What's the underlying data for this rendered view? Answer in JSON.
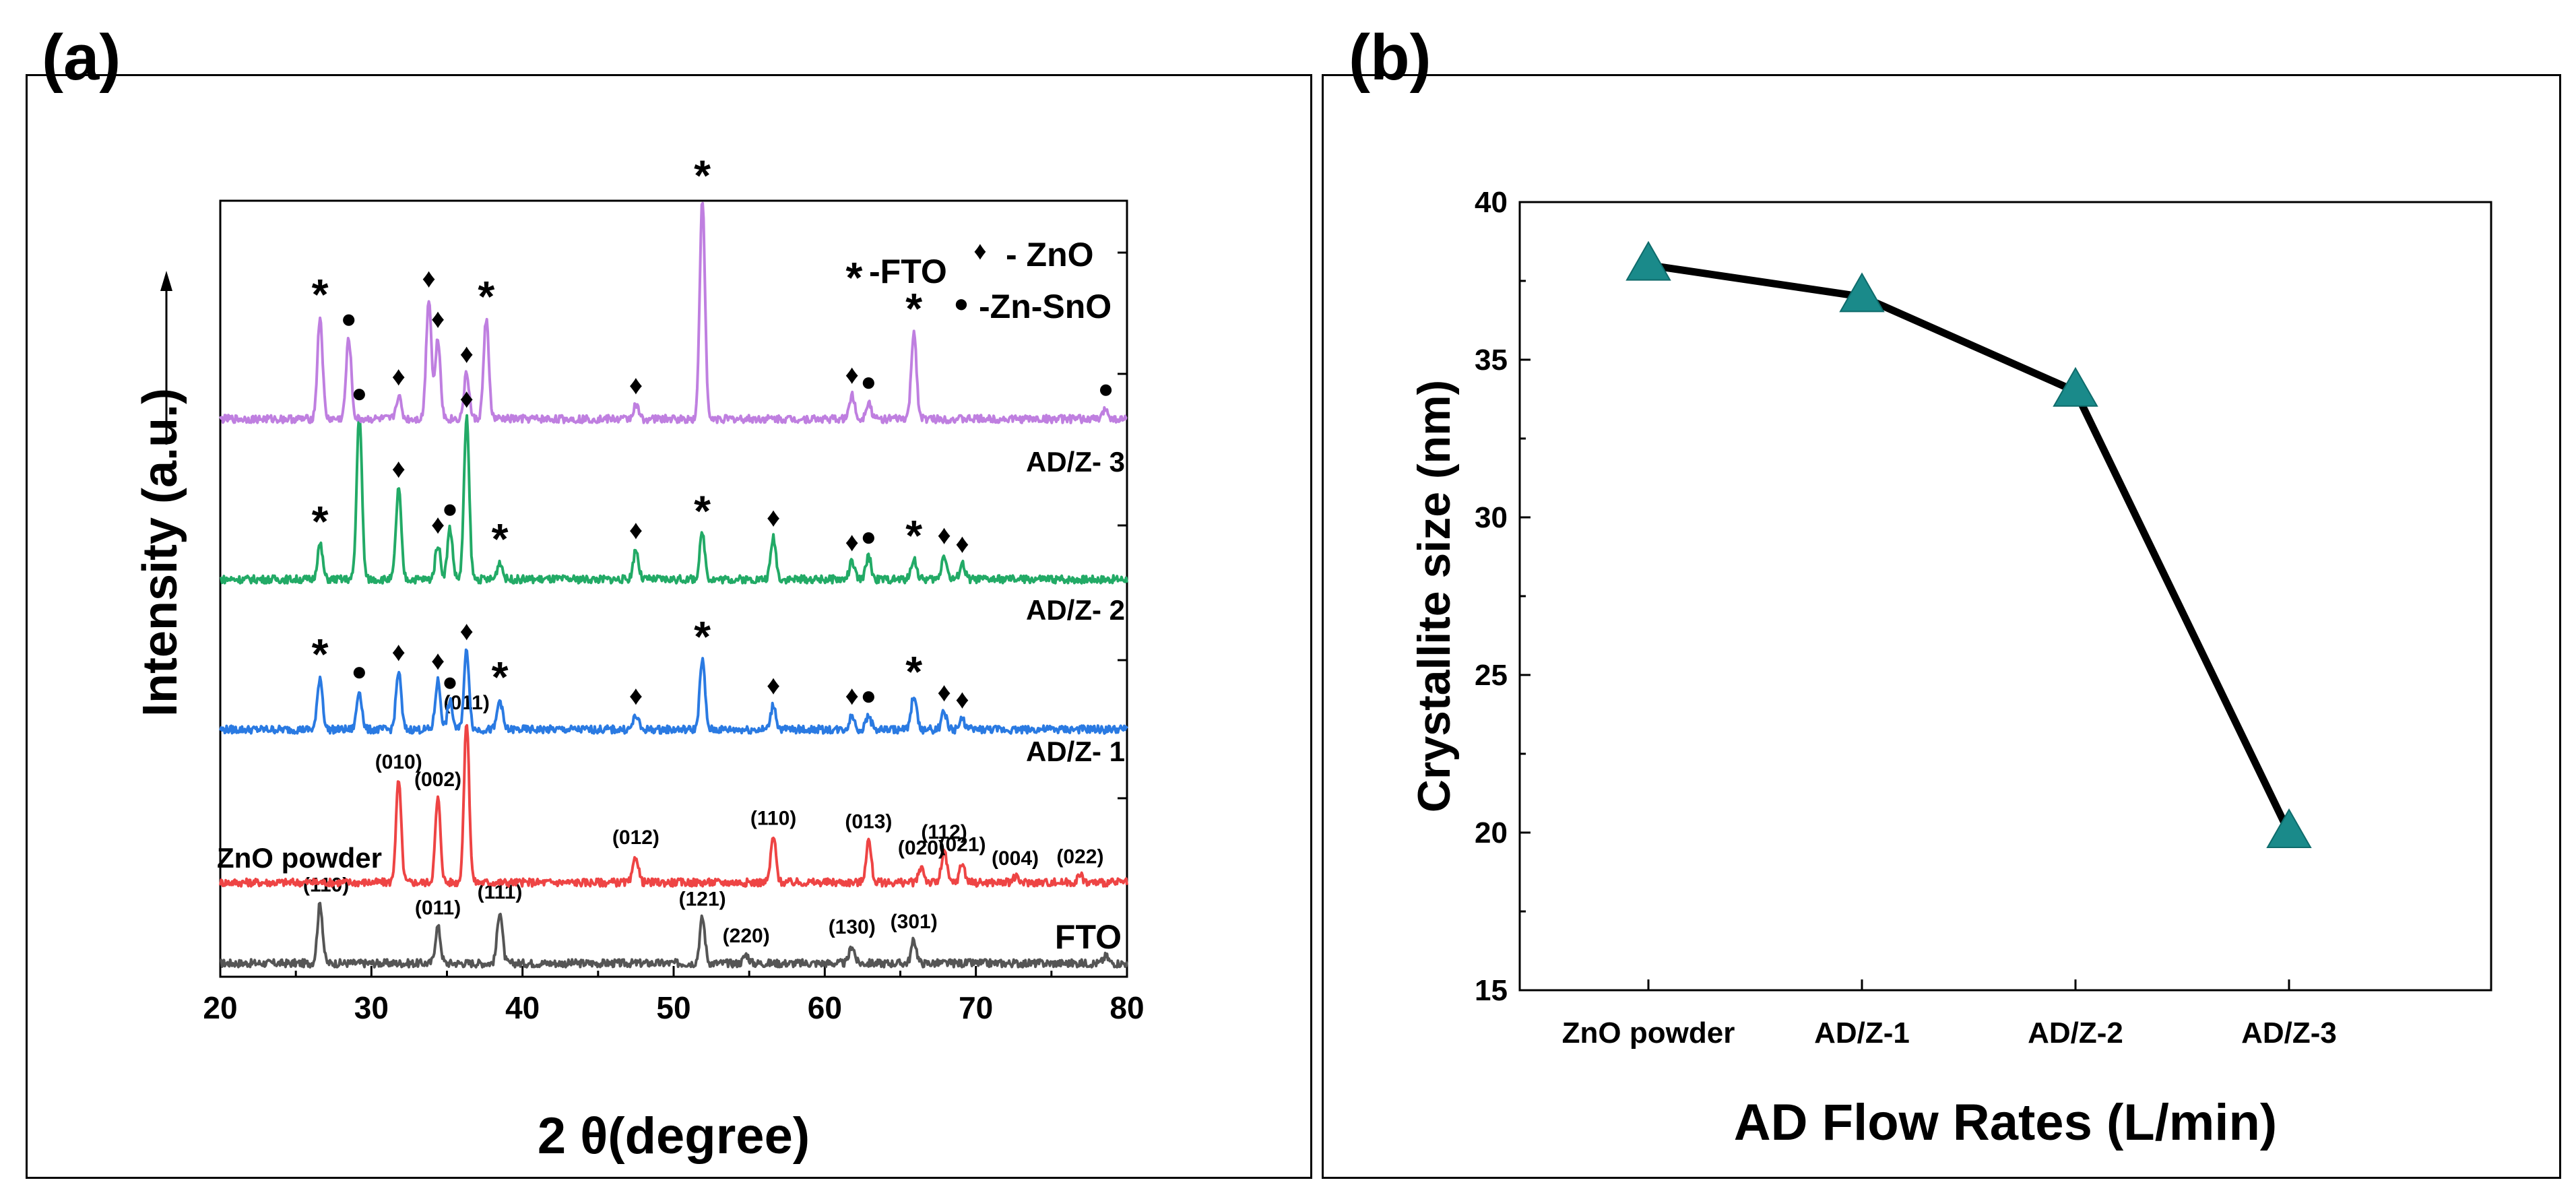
{
  "panels": {
    "a_label": "(a)",
    "b_label": "(b)"
  },
  "chart_data": [
    {
      "type": "line",
      "panel": "(a)",
      "title": "",
      "xlabel": "2 θ(degree)",
      "ylabel": "Intensity (a.u.)",
      "xlim": [
        20,
        80
      ],
      "xticks": [
        20,
        30,
        40,
        50,
        60,
        70,
        80
      ],
      "legend": [
        {
          "symbol": "*",
          "label": "-FTO"
        },
        {
          "symbol": "♦",
          "label": "- ZnO"
        },
        {
          "symbol": "●",
          "label": "-Zn-SnO"
        }
      ],
      "series": [
        {
          "name": "FTO",
          "color": "#555555",
          "peaks": [
            [
              26.6,
              34
            ],
            [
              34.4,
              21
            ],
            [
              38.5,
              30
            ],
            [
              51.9,
              26
            ],
            [
              54.8,
              5
            ],
            [
              61.8,
              10
            ],
            [
              65.9,
              13
            ],
            [
              78.6,
              4
            ]
          ],
          "annotations": [
            {
              "x": 27.0,
              "label": "(110)"
            },
            {
              "x": 34.4,
              "label": "(011)"
            },
            {
              "x": 38.5,
              "label": "(111)"
            },
            {
              "x": 51.9,
              "label": "(121)"
            },
            {
              "x": 54.8,
              "label": "(220)"
            },
            {
              "x": 61.8,
              "label": "(130)"
            },
            {
              "x": 65.9,
              "label": "(301)"
            }
          ]
        },
        {
          "name": "ZnO powder",
          "color": "#ee4444",
          "peaks": [
            [
              31.8,
              58
            ],
            [
              34.4,
              48
            ],
            [
              36.3,
              92
            ],
            [
              47.5,
              15
            ],
            [
              56.6,
              26
            ],
            [
              62.9,
              24
            ],
            [
              66.4,
              9
            ],
            [
              67.9,
              18
            ],
            [
              69.1,
              11
            ],
            [
              72.6,
              3
            ],
            [
              76.9,
              4
            ]
          ],
          "annotations": [
            {
              "x": 31.8,
              "label": "(010)"
            },
            {
              "x": 34.4,
              "label": "(002)"
            },
            {
              "x": 36.3,
              "label": "(011)"
            },
            {
              "x": 47.5,
              "label": "(012)"
            },
            {
              "x": 56.6,
              "label": "(110)"
            },
            {
              "x": 62.9,
              "label": "(013)"
            },
            {
              "x": 66.4,
              "label": "(020)"
            },
            {
              "x": 67.9,
              "label": "(112)"
            },
            {
              "x": 69.1,
              "label": "(021)"
            },
            {
              "x": 72.6,
              "label": "(004)"
            },
            {
              "x": 76.9,
              "label": "(022)"
            }
          ]
        },
        {
          "name": "AD/Z- 1",
          "color": "#2a7ae2",
          "peaks": [
            [
              26.6,
              30
            ],
            [
              29.2,
              22
            ],
            [
              31.8,
              33
            ],
            [
              34.4,
              28
            ],
            [
              35.2,
              16
            ],
            [
              36.3,
              45
            ],
            [
              38.5,
              17
            ],
            [
              47.5,
              8
            ],
            [
              51.9,
              40
            ],
            [
              56.6,
              14
            ],
            [
              61.8,
              8
            ],
            [
              62.9,
              8
            ],
            [
              65.9,
              20
            ],
            [
              67.9,
              10
            ],
            [
              69.1,
              6
            ]
          ],
          "annotations": []
        },
        {
          "name": "AD/Z- 2",
          "color": "#22aa66",
          "peaks": [
            [
              26.6,
              20
            ],
            [
              29.2,
              95
            ],
            [
              31.8,
              52
            ],
            [
              34.4,
              20
            ],
            [
              35.2,
              29
            ],
            [
              36.3,
              92
            ],
            [
              38.5,
              10
            ],
            [
              47.5,
              17
            ],
            [
              51.9,
              26
            ],
            [
              56.6,
              24
            ],
            [
              61.8,
              10
            ],
            [
              62.9,
              13
            ],
            [
              65.9,
              12
            ],
            [
              67.9,
              14
            ],
            [
              69.1,
              9
            ]
          ],
          "annotations": []
        },
        {
          "name": "AD/Z- 3",
          "color": "#bf7fe0",
          "peaks": [
            [
              26.6,
              58
            ],
            [
              28.5,
              46
            ],
            [
              31.8,
              13
            ],
            [
              33.8,
              69
            ],
            [
              34.4,
              46
            ],
            [
              36.3,
              26
            ],
            [
              37.6,
              57
            ],
            [
              47.5,
              8
            ],
            [
              51.9,
              126
            ],
            [
              61.8,
              14
            ],
            [
              62.9,
              10
            ],
            [
              65.9,
              50
            ],
            [
              78.6,
              6
            ]
          ],
          "annotations": []
        }
      ]
    },
    {
      "type": "line",
      "panel": "(b)",
      "title": "",
      "xlabel": "AD Flow Rates (L/min)",
      "ylabel": "Crystallite size (nm)",
      "categories": [
        "ZnO powder",
        "AD/Z-1",
        "AD/Z-2",
        "AD/Z-3"
      ],
      "values": [
        38,
        37,
        34,
        20
      ],
      "ylim": [
        15,
        40
      ],
      "yticks": [
        15,
        20,
        25,
        30,
        35,
        40
      ],
      "marker": "triangle",
      "marker_color": "#1a8a8a",
      "line_color": "#000000"
    }
  ]
}
